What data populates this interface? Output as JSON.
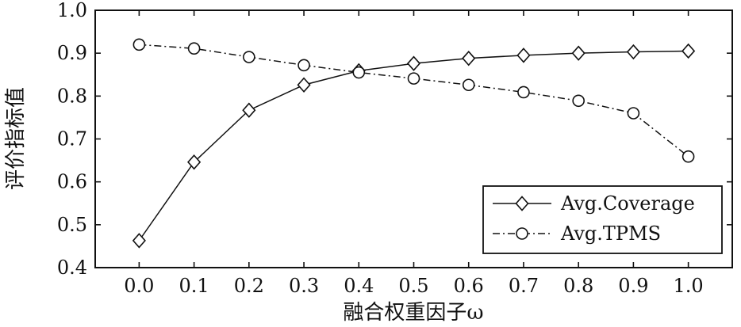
{
  "chart_data": {
    "type": "line",
    "xlabel": "融合权重因子ω",
    "ylabel": "评价指标值",
    "x": [
      0.0,
      0.1,
      0.2,
      0.3,
      0.4,
      0.5,
      0.6,
      0.7,
      0.8,
      0.9,
      1.0
    ],
    "x_tick_labels": [
      "0.0",
      "0.1",
      "0.2",
      "0.3",
      "0.4",
      "0.5",
      "0.6",
      "0.7",
      "0.8",
      "0.9",
      "1.0"
    ],
    "xlim": [
      -0.08,
      1.08
    ],
    "ylim": [
      0.4,
      1.0
    ],
    "y_ticks": [
      0.4,
      0.5,
      0.6,
      0.7,
      0.8,
      0.9,
      1.0
    ],
    "y_tick_labels": [
      "0.4",
      "0.5",
      "0.6",
      "0.7",
      "0.8",
      "0.9",
      "1.0"
    ],
    "grid": false,
    "legend_position": "lower-right",
    "series": [
      {
        "name": "Avg.Coverage",
        "marker": "diamond",
        "line_style": "solid",
        "values": [
          0.463,
          0.646,
          0.767,
          0.826,
          0.859,
          0.876,
          0.888,
          0.895,
          0.9,
          0.903,
          0.905
        ]
      },
      {
        "name": "Avg.TPMS",
        "marker": "circle",
        "line_style": "dash-dot",
        "values": [
          0.92,
          0.911,
          0.891,
          0.872,
          0.855,
          0.841,
          0.826,
          0.809,
          0.789,
          0.76,
          0.659
        ]
      }
    ]
  }
}
